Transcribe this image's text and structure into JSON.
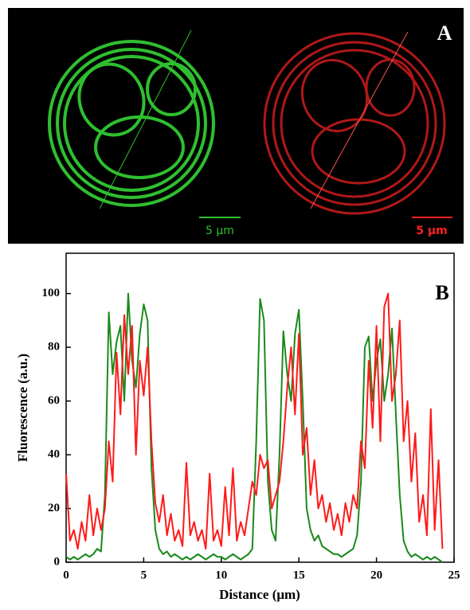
{
  "panel_a": {
    "label": "A",
    "scale_bar_green": "5 μm",
    "scale_bar_red": "5 μm"
  },
  "chart_data": {
    "type": "line",
    "panel_label": "B",
    "x_label": "Distance (μm)",
    "y_label": "Fluorescence (a.u.)",
    "x": [
      0,
      0.25,
      0.5,
      0.75,
      1,
      1.25,
      1.5,
      1.75,
      2,
      2.25,
      2.5,
      2.75,
      3,
      3.25,
      3.5,
      3.75,
      4,
      4.25,
      4.5,
      4.75,
      5,
      5.25,
      5.5,
      5.75,
      6,
      6.25,
      6.5,
      6.75,
      7,
      7.25,
      7.5,
      7.75,
      8,
      8.25,
      8.5,
      8.75,
      9,
      9.25,
      9.5,
      9.75,
      10,
      10.25,
      10.5,
      10.75,
      11,
      11.25,
      11.5,
      11.75,
      12,
      12.25,
      12.5,
      12.75,
      13,
      13.25,
      13.5,
      13.75,
      14,
      14.25,
      14.5,
      14.75,
      15,
      15.25,
      15.5,
      15.75,
      16,
      16.25,
      16.5,
      16.75,
      17,
      17.25,
      17.5,
      17.75,
      18,
      18.25,
      18.5,
      18.75,
      19,
      19.25,
      19.5,
      19.75,
      20,
      20.25,
      20.5,
      20.75,
      21,
      21.25,
      21.5,
      21.75,
      22,
      22.25,
      22.5,
      22.75,
      23,
      23.25,
      23.5,
      23.75,
      24,
      24.25
    ],
    "series": [
      {
        "color": "#1a8a1a",
        "values": [
          2,
          1,
          2,
          1,
          2,
          3,
          2,
          3,
          5,
          4,
          25,
          93,
          70,
          82,
          88,
          60,
          100,
          75,
          65,
          85,
          96,
          90,
          35,
          12,
          5,
          3,
          4,
          2,
          3,
          2,
          1,
          2,
          1,
          2,
          3,
          2,
          1,
          2,
          3,
          2,
          2,
          1,
          2,
          3,
          2,
          1,
          2,
          3,
          5,
          45,
          98,
          90,
          30,
          12,
          8,
          40,
          86,
          70,
          60,
          85,
          94,
          60,
          20,
          12,
          8,
          10,
          6,
          5,
          4,
          3,
          3,
          2,
          3,
          4,
          5,
          10,
          30,
          80,
          84,
          60,
          75,
          83,
          60,
          70,
          87,
          55,
          25,
          8,
          4,
          2,
          3,
          2,
          1,
          2,
          1,
          2,
          1,
          0
        ]
      },
      {
        "color": "#ff1a1a",
        "values": [
          33,
          8,
          12,
          5,
          15,
          8,
          25,
          10,
          20,
          12,
          20,
          45,
          30,
          78,
          55,
          92,
          70,
          88,
          40,
          75,
          62,
          80,
          45,
          22,
          15,
          25,
          10,
          18,
          8,
          12,
          6,
          37,
          10,
          15,
          8,
          12,
          5,
          33,
          8,
          12,
          6,
          28,
          10,
          35,
          8,
          15,
          10,
          20,
          30,
          25,
          40,
          35,
          38,
          20,
          25,
          30,
          45,
          65,
          80,
          55,
          85,
          40,
          50,
          25,
          38,
          20,
          25,
          15,
          22,
          12,
          18,
          10,
          22,
          15,
          25,
          20,
          45,
          35,
          75,
          50,
          88,
          45,
          95,
          100,
          60,
          70,
          90,
          45,
          60,
          30,
          48,
          15,
          25,
          10,
          57,
          12,
          38,
          5
        ]
      }
    ],
    "xlim": [
      0,
      25
    ],
    "xticks": [
      0,
      5,
      10,
      15,
      20,
      25
    ],
    "ylim": [
      0,
      115
    ],
    "yticks": [
      0,
      20,
      40,
      60,
      80,
      100
    ],
    "grid": false
  }
}
